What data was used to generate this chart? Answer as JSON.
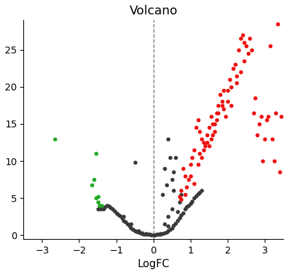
{
  "title": "Volcano",
  "xlabel": "LogFC",
  "xlim": [
    -3.5,
    3.5
  ],
  "ylim": [
    -0.5,
    29
  ],
  "dashed_x": 0,
  "red_points": [
    [
      0.7,
      5.2
    ],
    [
      0.75,
      4.8
    ],
    [
      0.8,
      9.0
    ],
    [
      0.85,
      8.0
    ],
    [
      1.0,
      9.5
    ],
    [
      1.05,
      10.5
    ],
    [
      1.1,
      11.5
    ],
    [
      1.15,
      14.5
    ],
    [
      1.2,
      15.5
    ],
    [
      1.25,
      14.0
    ],
    [
      1.3,
      13.0
    ],
    [
      1.35,
      12.5
    ],
    [
      1.4,
      12.0
    ],
    [
      1.45,
      13.5
    ],
    [
      1.5,
      14.5
    ],
    [
      1.55,
      16.0
    ],
    [
      1.6,
      15.0
    ],
    [
      1.65,
      14.0
    ],
    [
      1.7,
      16.5
    ],
    [
      1.75,
      17.5
    ],
    [
      1.8,
      19.0
    ],
    [
      1.85,
      18.0
    ],
    [
      1.9,
      17.0
    ],
    [
      1.95,
      16.0
    ],
    [
      2.0,
      19.5
    ],
    [
      2.05,
      21.0
    ],
    [
      2.1,
      20.0
    ],
    [
      2.15,
      22.5
    ],
    [
      2.2,
      23.0
    ],
    [
      2.25,
      21.5
    ],
    [
      2.3,
      25.0
    ],
    [
      2.35,
      26.5
    ],
    [
      2.4,
      27.0
    ],
    [
      2.45,
      26.0
    ],
    [
      2.5,
      25.5
    ],
    [
      2.55,
      24.5
    ],
    [
      2.6,
      26.5
    ],
    [
      2.65,
      25.0
    ],
    [
      2.7,
      16.5
    ],
    [
      2.75,
      18.5
    ],
    [
      2.8,
      13.5
    ],
    [
      2.85,
      15.0
    ],
    [
      2.9,
      16.0
    ],
    [
      2.95,
      10.0
    ],
    [
      3.0,
      13.0
    ],
    [
      3.05,
      15.5
    ],
    [
      3.1,
      16.0
    ],
    [
      3.15,
      25.5
    ],
    [
      3.2,
      13.0
    ],
    [
      3.25,
      10.0
    ],
    [
      3.3,
      16.5
    ],
    [
      3.35,
      28.5
    ],
    [
      3.4,
      8.5
    ],
    [
      3.45,
      16.0
    ],
    [
      1.0,
      8.0
    ],
    [
      1.1,
      7.0
    ],
    [
      1.2,
      9.5
    ],
    [
      1.3,
      10.5
    ],
    [
      1.5,
      12.0
    ],
    [
      0.85,
      5.5
    ],
    [
      0.9,
      6.5
    ],
    [
      0.95,
      7.5
    ],
    [
      1.6,
      13.5
    ],
    [
      1.7,
      15.5
    ],
    [
      2.0,
      18.0
    ],
    [
      2.1,
      17.5
    ],
    [
      1.35,
      11.5
    ],
    [
      1.45,
      12.5
    ],
    [
      1.55,
      13.0
    ],
    [
      1.65,
      15.0
    ],
    [
      1.75,
      16.5
    ],
    [
      1.85,
      17.5
    ],
    [
      2.25,
      20.5
    ],
    [
      2.35,
      22.0
    ],
    [
      2.45,
      23.5
    ],
    [
      0.75,
      6.0
    ],
    [
      1.25,
      11.0
    ],
    [
      1.9,
      19.5
    ]
  ],
  "green_points": [
    [
      -2.65,
      13.0
    ],
    [
      -1.55,
      11.0
    ],
    [
      -1.6,
      7.5
    ],
    [
      -1.65,
      6.8
    ],
    [
      -1.5,
      5.2
    ],
    [
      -1.55,
      5.0
    ],
    [
      -1.5,
      4.5
    ],
    [
      -1.45,
      4.0
    ],
    [
      -1.4,
      4.0
    ]
  ],
  "gray_points": [
    [
      -0.05,
      0.05
    ],
    [
      -0.1,
      0.08
    ],
    [
      -0.15,
      0.1
    ],
    [
      -0.2,
      0.1
    ],
    [
      -0.25,
      0.15
    ],
    [
      -0.3,
      0.2
    ],
    [
      -0.35,
      0.3
    ],
    [
      -0.4,
      0.4
    ],
    [
      -0.45,
      0.5
    ],
    [
      -0.5,
      0.6
    ],
    [
      -0.55,
      0.8
    ],
    [
      -0.6,
      1.0
    ],
    [
      -0.65,
      1.2
    ],
    [
      -0.7,
      1.5
    ],
    [
      -0.75,
      1.8
    ],
    [
      -0.8,
      2.0
    ],
    [
      -0.85,
      2.3
    ],
    [
      -0.9,
      2.6
    ],
    [
      -0.95,
      2.8
    ],
    [
      -1.0,
      3.0
    ],
    [
      -1.05,
      3.3
    ],
    [
      -1.1,
      3.5
    ],
    [
      -1.15,
      3.7
    ],
    [
      -1.2,
      3.9
    ],
    [
      -1.25,
      4.0
    ],
    [
      -1.3,
      3.8
    ],
    [
      -1.35,
      3.5
    ],
    [
      -1.4,
      3.5
    ],
    [
      -1.45,
      3.5
    ],
    [
      -1.5,
      3.5
    ],
    [
      -0.5,
      9.8
    ],
    [
      0.0,
      0.05
    ],
    [
      0.05,
      0.05
    ],
    [
      0.1,
      0.08
    ],
    [
      0.15,
      0.1
    ],
    [
      0.2,
      0.15
    ],
    [
      0.25,
      0.2
    ],
    [
      0.3,
      0.3
    ],
    [
      0.35,
      0.4
    ],
    [
      0.4,
      0.6
    ],
    [
      0.45,
      0.8
    ],
    [
      0.5,
      1.0
    ],
    [
      0.55,
      1.3
    ],
    [
      0.6,
      1.6
    ],
    [
      0.65,
      2.0
    ],
    [
      0.7,
      2.3
    ],
    [
      0.75,
      2.7
    ],
    [
      0.8,
      3.0
    ],
    [
      0.85,
      3.5
    ],
    [
      0.9,
      3.8
    ],
    [
      0.95,
      4.0
    ],
    [
      1.0,
      4.3
    ],
    [
      1.05,
      4.6
    ],
    [
      1.1,
      5.0
    ],
    [
      1.15,
      5.3
    ],
    [
      1.2,
      5.6
    ],
    [
      1.25,
      5.8
    ],
    [
      1.3,
      6.0
    ],
    [
      0.4,
      13.0
    ],
    [
      0.45,
      10.5
    ],
    [
      0.3,
      9.0
    ],
    [
      0.5,
      7.5
    ],
    [
      0.55,
      8.5
    ],
    [
      0.6,
      10.5
    ],
    [
      0.25,
      5.5
    ],
    [
      0.35,
      6.8
    ],
    [
      0.55,
      6.0
    ],
    [
      -0.2,
      0.2
    ],
    [
      -0.3,
      0.3
    ],
    [
      -0.1,
      0.1
    ],
    [
      0.1,
      0.15
    ],
    [
      0.2,
      0.25
    ],
    [
      0.4,
      1.2
    ],
    [
      0.65,
      3.2
    ],
    [
      0.7,
      4.5
    ],
    [
      0.75,
      5.5
    ],
    [
      0.5,
      3.5
    ],
    [
      0.4,
      2.5
    ],
    [
      0.3,
      1.5
    ],
    [
      -0.4,
      0.6
    ],
    [
      -0.6,
      1.5
    ],
    [
      -0.8,
      2.5
    ]
  ],
  "point_size": 18,
  "red_color": "#EE1111",
  "green_color": "#22AA22",
  "gray_color": "#3A3A3A",
  "background_color": "#FFFFFF",
  "title_fontsize": 13,
  "label_fontsize": 11,
  "tick_fontsize": 10,
  "xticks": [
    -3,
    -2,
    -1,
    0,
    1,
    2,
    3
  ],
  "yticks": [
    0,
    5,
    10,
    15,
    20,
    25
  ]
}
